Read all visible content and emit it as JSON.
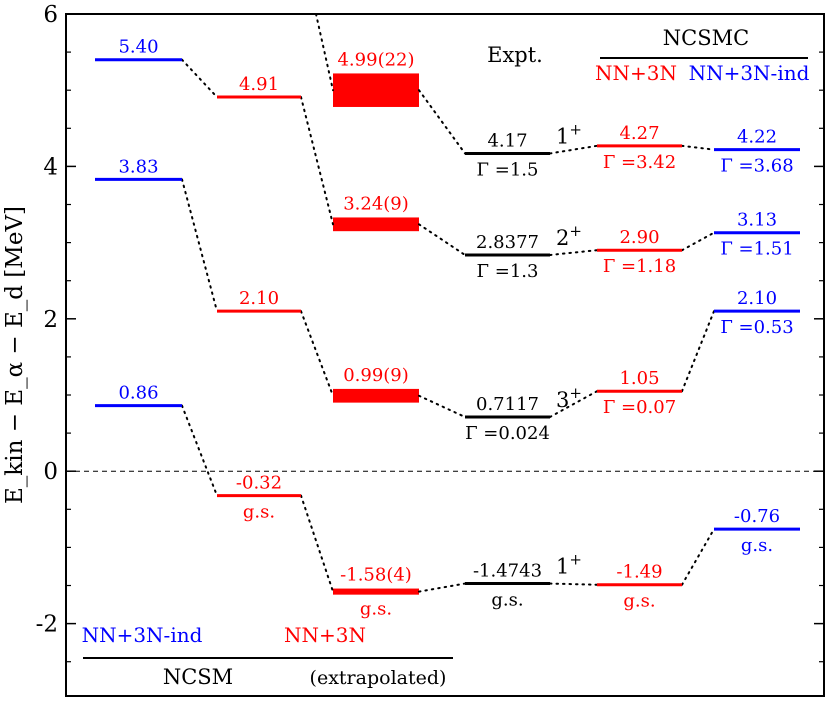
{
  "chart_data": {
    "type": "level-scheme",
    "ylabel": "E_kin − E_α − E_d [MeV]",
    "ylim": [
      -2.95,
      6.0
    ],
    "yticks": [
      -2,
      0,
      2,
      4,
      6
    ],
    "colors": {
      "black": "#000000",
      "red": "#ff0000",
      "blue": "#0000ff"
    },
    "columns": [
      {
        "id": "ncsm_ind",
        "color": "blue",
        "levels": [
          {
            "key": "a",
            "energy": 5.4,
            "above": "5.40",
            "below": ""
          },
          {
            "key": "b",
            "energy": 3.83,
            "above": "3.83",
            "below": ""
          },
          {
            "key": "c",
            "energy": 0.86,
            "above": "0.86",
            "below": ""
          }
        ]
      },
      {
        "id": "ncsm_3n",
        "color": "red",
        "levels": [
          {
            "key": "a",
            "energy": 4.91,
            "above": "4.91",
            "below": ""
          },
          {
            "key": "c",
            "energy": 2.1,
            "above": "2.10",
            "below": ""
          },
          {
            "key": "d",
            "energy": -0.32,
            "above": "-0.32",
            "below": "g.s."
          }
        ]
      },
      {
        "id": "ncsm_extrap",
        "color": "red",
        "levels": [
          {
            "key": "b",
            "energy": 5.0,
            "uncertainty": 0.22,
            "band": true,
            "above": "4.99(22)",
            "below": ""
          },
          {
            "key": "c",
            "energy": 3.24,
            "uncertainty": 0.09,
            "band": true,
            "above": "3.24(9)",
            "below": ""
          },
          {
            "key": "d",
            "energy": 0.99,
            "uncertainty": 0.09,
            "band": true,
            "above": "0.99(9)",
            "below": ""
          },
          {
            "key": "e",
            "energy": -1.58,
            "uncertainty": 0.04,
            "band": true,
            "above": "-1.58(4)",
            "below": "g.s."
          }
        ]
      },
      {
        "id": "expt",
        "color": "black",
        "levels": [
          {
            "key": "b",
            "energy": 4.17,
            "above": "4.17",
            "below": "Γ =1.5",
            "spin": "1",
            "parity": "+"
          },
          {
            "key": "c",
            "energy": 2.8377,
            "above": "2.8377",
            "below": "Γ =1.3",
            "spin": "2",
            "parity": "+"
          },
          {
            "key": "d",
            "energy": 0.7117,
            "above": "0.7117",
            "below": "Γ =0.024",
            "spin": "3",
            "parity": "+"
          },
          {
            "key": "e",
            "energy": -1.4743,
            "above": "-1.4743",
            "below": "g.s.",
            "spin": "1",
            "parity": "+"
          }
        ]
      },
      {
        "id": "ncsmc_3n",
        "color": "red",
        "levels": [
          {
            "key": "b",
            "energy": 4.27,
            "above": "4.27",
            "below": "Γ =3.42"
          },
          {
            "key": "c",
            "energy": 2.9,
            "above": "2.90",
            "below": "Γ =1.18"
          },
          {
            "key": "d",
            "energy": 1.05,
            "above": "1.05",
            "below": "Γ =0.07"
          },
          {
            "key": "e",
            "energy": -1.49,
            "above": "-1.49",
            "below": "g.s."
          }
        ]
      },
      {
        "id": "ncsmc_ind",
        "color": "blue",
        "levels": [
          {
            "key": "b",
            "energy": 4.22,
            "above": "4.22",
            "below": "Γ =3.68"
          },
          {
            "key": "c",
            "energy": 3.13,
            "above": "3.13",
            "below": "Γ =1.51"
          },
          {
            "key": "d",
            "energy": 2.1,
            "above": "2.10",
            "below": "Γ =0.53"
          },
          {
            "key": "e",
            "energy": -0.76,
            "above": "-0.76",
            "below": "g.s."
          }
        ]
      }
    ],
    "connections": [
      [
        "ncsm_ind",
        "a",
        "ncsm_3n",
        "a"
      ],
      [
        "ncsm_ind",
        "b",
        "ncsm_3n",
        "c"
      ],
      [
        "ncsm_ind",
        "c",
        "ncsm_3n",
        "d"
      ],
      [
        "ncsm_3n",
        "a",
        "ncsm_extrap",
        "c"
      ],
      [
        "ncsm_3n",
        "c",
        "ncsm_extrap",
        "d"
      ],
      [
        "ncsm_3n",
        "d",
        "ncsm_extrap",
        "e"
      ],
      [
        "ncsm_extrap",
        "b",
        "expt",
        "b"
      ],
      [
        "ncsm_extrap",
        "c",
        "expt",
        "c"
      ],
      [
        "ncsm_extrap",
        "d",
        "expt",
        "d"
      ],
      [
        "ncsm_extrap",
        "e",
        "expt",
        "e"
      ],
      [
        "expt",
        "b",
        "ncsmc_3n",
        "b"
      ],
      [
        "expt",
        "c",
        "ncsmc_3n",
        "c"
      ],
      [
        "expt",
        "d",
        "ncsmc_3n",
        "d"
      ],
      [
        "expt",
        "e",
        "ncsmc_3n",
        "e"
      ],
      [
        "ncsmc_3n",
        "b",
        "ncsmc_ind",
        "b"
      ],
      [
        "ncsmc_3n",
        "c",
        "ncsmc_ind",
        "c"
      ],
      [
        "ncsmc_3n",
        "d",
        "ncsmc_ind",
        "d"
      ],
      [
        "ncsmc_3n",
        "e",
        "ncsmc_ind",
        "e"
      ]
    ],
    "top_entry": {
      "from_energy": 6.0,
      "to_column": "ncsm_extrap",
      "to_key": "b"
    },
    "zero_line": 0,
    "labels": {
      "expt": "Expt.",
      "ncsmc": "NCSMC",
      "ncsmc_nn3n": "NN+3N",
      "ncsmc_ind": "NN+3N-ind",
      "ncsm_ind": "NN+3N-ind",
      "ncsm_nn3n": "NN+3N",
      "ncsm": "NCSM",
      "extrapolated": "(extrapolated)"
    }
  }
}
